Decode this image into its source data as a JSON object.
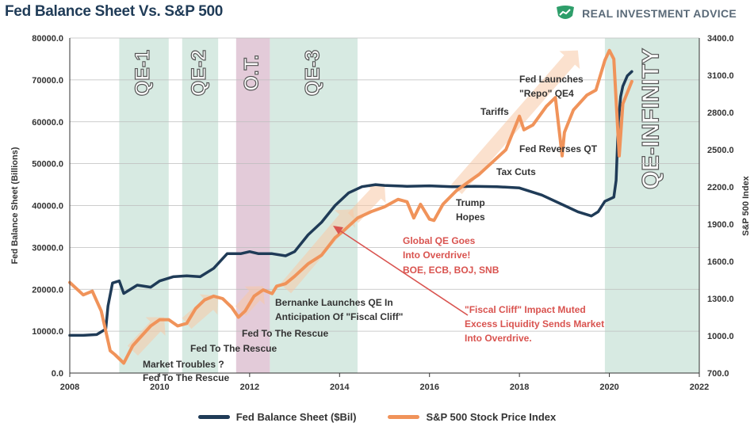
{
  "title": "Fed Balance Sheet Vs. S&P 500",
  "brand": {
    "name": "REAL INVESTMENT ADVICE",
    "logo_icon": "green-chart-shield-icon",
    "color": "#2e9e6a"
  },
  "colors": {
    "fed": "#1f3b57",
    "spx": "#f0935a",
    "qe_band": "#c9e3d8",
    "ot_band": "#d9b9cc",
    "arrow": "#f7c9a5",
    "red_annot": "#d9534f",
    "grid": "#bdbdbd"
  },
  "chart_data": {
    "type": "line",
    "xlabel": "",
    "ylabel": "Fed Balance Sheet (Billions)",
    "y2label": "S&P 500 Index",
    "xlim": [
      2008,
      2022
    ],
    "ylim": [
      0,
      80000
    ],
    "y2lim": [
      700,
      3400
    ],
    "x_ticks": [
      "2008",
      "2010",
      "2012",
      "2014",
      "2016",
      "2018",
      "2020",
      "2022"
    ],
    "y_ticks": [
      "0.0",
      "10000.0",
      "20000.0",
      "30000.0",
      "40000.0",
      "50000.0",
      "60000.0",
      "70000.0",
      "80000.0"
    ],
    "y2_ticks": [
      "700.0",
      "1000.0",
      "1300.0",
      "1600.0",
      "1900.0",
      "2200.0",
      "2500.0",
      "2800.0",
      "3100.0",
      "3400.0"
    ],
    "grid": true,
    "legend_position": "bottom",
    "bands": [
      {
        "label": "QE-1",
        "start": 2009.1,
        "end": 2010.2,
        "kind": "qe"
      },
      {
        "label": "QE-2",
        "start": 2010.5,
        "end": 2011.3,
        "kind": "qe"
      },
      {
        "label": "O.T.",
        "start": 2011.7,
        "end": 2012.45,
        "kind": "ot"
      },
      {
        "label": "QE-3",
        "start": 2012.45,
        "end": 2014.4,
        "kind": "qe"
      },
      {
        "label": "QE-INFINITY",
        "start": 2019.9,
        "end": 2022,
        "kind": "qe"
      }
    ],
    "series": [
      {
        "name": "Fed Balance Sheet ($Bil)",
        "axis": "left",
        "x": [
          2008.0,
          2008.3,
          2008.6,
          2008.8,
          2008.85,
          2008.95,
          2009.1,
          2009.2,
          2009.5,
          2009.8,
          2010.0,
          2010.3,
          2010.6,
          2010.9,
          2011.2,
          2011.5,
          2011.8,
          2012.0,
          2012.2,
          2012.5,
          2012.8,
          2013.0,
          2013.3,
          2013.6,
          2013.9,
          2014.2,
          2014.5,
          2014.8,
          2015.0,
          2015.5,
          2016.0,
          2016.5,
          2017.0,
          2017.5,
          2018.0,
          2018.5,
          2019.0,
          2019.3,
          2019.6,
          2019.75,
          2019.9,
          2020.1,
          2020.15,
          2020.2,
          2020.25,
          2020.3,
          2020.4,
          2020.5
        ],
        "values": [
          9000,
          9000,
          9200,
          10500,
          16000,
          21500,
          22000,
          19000,
          21000,
          20500,
          22000,
          23000,
          23200,
          23000,
          25000,
          28500,
          28500,
          29000,
          28500,
          28500,
          28000,
          29000,
          33000,
          36000,
          40000,
          43000,
          44500,
          45000,
          44800,
          44600,
          44700,
          44500,
          44600,
          44500,
          44200,
          42500,
          40000,
          38500,
          37500,
          38500,
          41000,
          42000,
          46000,
          60000,
          66000,
          68500,
          71000,
          72000
        ]
      },
      {
        "name": "S&P 500 Stock Price Index",
        "axis": "right",
        "x": [
          2008.0,
          2008.3,
          2008.5,
          2008.7,
          2008.9,
          2009.0,
          2009.2,
          2009.4,
          2009.6,
          2009.8,
          2010.0,
          2010.2,
          2010.4,
          2010.6,
          2010.8,
          2011.0,
          2011.2,
          2011.4,
          2011.6,
          2011.75,
          2011.9,
          2012.1,
          2012.3,
          2012.5,
          2012.6,
          2012.8,
          2013.0,
          2013.3,
          2013.6,
          2013.9,
          2014.1,
          2014.4,
          2014.7,
          2015.0,
          2015.3,
          2015.5,
          2015.65,
          2015.8,
          2016.0,
          2016.1,
          2016.3,
          2016.6,
          2016.9,
          2017.1,
          2017.4,
          2017.7,
          2018.0,
          2018.1,
          2018.3,
          2018.6,
          2018.8,
          2018.95,
          2019.0,
          2019.2,
          2019.5,
          2019.7,
          2019.9,
          2020.0,
          2020.1,
          2020.22,
          2020.3,
          2020.5
        ],
        "values": [
          1430,
          1330,
          1360,
          1200,
          880,
          850,
          780,
          920,
          1000,
          1080,
          1130,
          1130,
          1080,
          1100,
          1220,
          1290,
          1320,
          1300,
          1230,
          1150,
          1200,
          1320,
          1370,
          1340,
          1400,
          1420,
          1480,
          1580,
          1650,
          1790,
          1850,
          1950,
          2000,
          2040,
          2100,
          2080,
          1950,
          2060,
          1940,
          1930,
          2060,
          2170,
          2250,
          2300,
          2400,
          2500,
          2770,
          2660,
          2700,
          2850,
          2920,
          2450,
          2640,
          2820,
          2940,
          2980,
          3220,
          3300,
          3230,
          2450,
          2870,
          3050
        ]
      }
    ],
    "annotations": [
      {
        "text": "Market Troubles ?",
        "style": "dark"
      },
      {
        "text": "Fed To The Rescue",
        "style": "dark"
      },
      {
        "text": "Fed To The Rescue",
        "style": "dark"
      },
      {
        "text": "Fed To The Rescue",
        "style": "dark"
      },
      {
        "text": "Bernanke Launches QE In",
        "style": "dark"
      },
      {
        "text": "Anticipation Of \"Fiscal Cliff\"",
        "style": "dark"
      },
      {
        "text": "Trump",
        "style": "dark"
      },
      {
        "text": "Hopes",
        "style": "dark"
      },
      {
        "text": "Tax Cuts",
        "style": "dark"
      },
      {
        "text": "Tariffs",
        "style": "dark"
      },
      {
        "text": "Fed Launches",
        "style": "dark"
      },
      {
        "text": "\"Repo\" QE4",
        "style": "dark"
      },
      {
        "text": "Fed Reverses QT",
        "style": "dark"
      },
      {
        "text": "Global QE Goes",
        "style": "red"
      },
      {
        "text": "Into Overdrive!",
        "style": "red"
      },
      {
        "text": "BOE, ECB, BOJ, SNB",
        "style": "red"
      },
      {
        "text": "\"Fiscal Cliff\" Impact Muted",
        "style": "red"
      },
      {
        "text": "Excess Liquidity Sends Market",
        "style": "red"
      },
      {
        "text": "Into Overdrive.",
        "style": "red"
      }
    ]
  }
}
